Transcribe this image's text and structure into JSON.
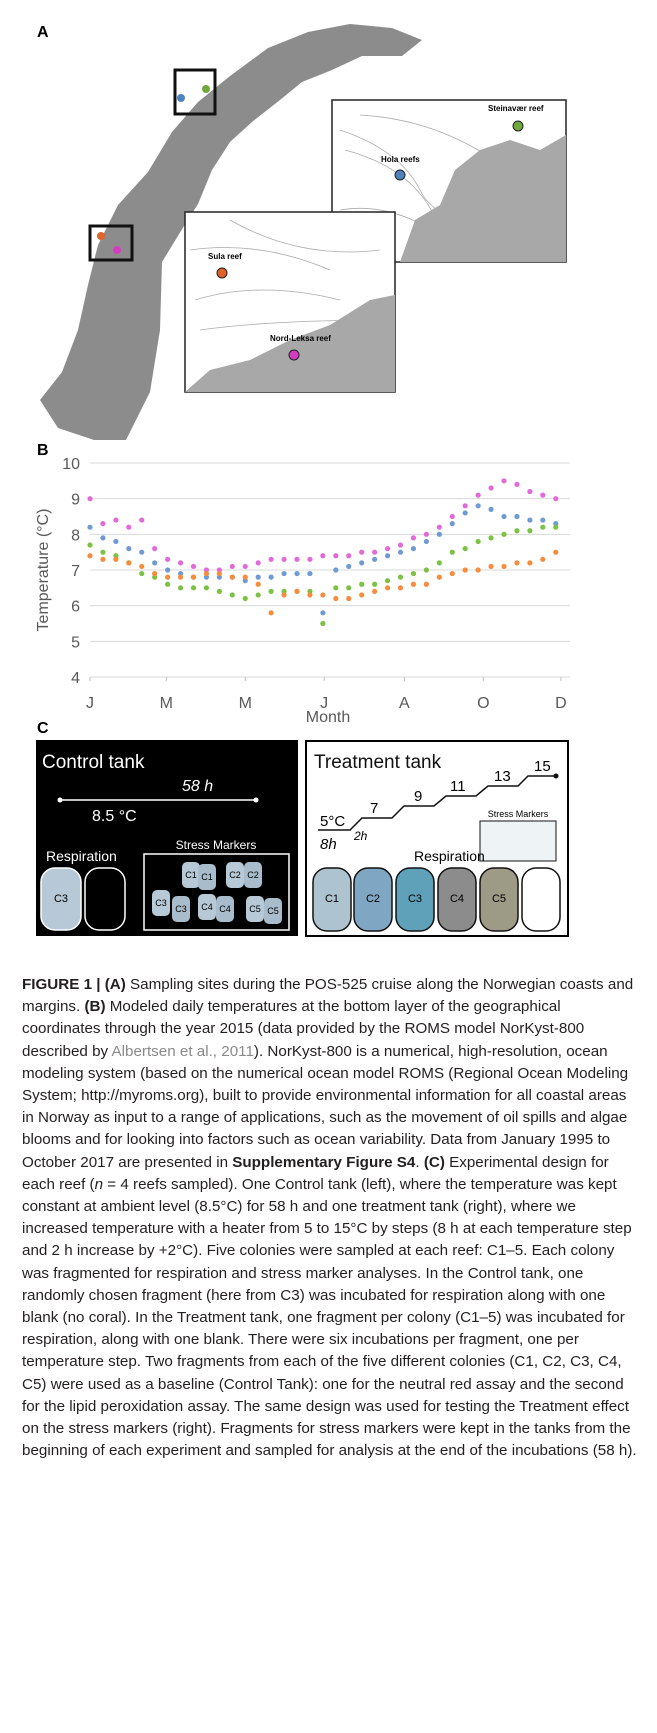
{
  "panel_a": {
    "label": "A",
    "sites": [
      "Steinavær reef",
      "Hola reefs",
      "Sula reef",
      "Nord-Leksa reef"
    ]
  },
  "chart_data": {
    "type": "scatter",
    "panel_label": "B",
    "x_label": "Month",
    "y_label": "Temperature (°C)",
    "x": [
      1,
      11,
      21,
      31,
      41,
      51,
      61,
      71,
      81,
      91,
      101,
      111,
      121,
      131,
      141,
      151,
      161,
      171,
      181,
      191,
      201,
      211,
      221,
      231,
      241,
      251,
      261,
      271,
      281,
      291,
      301,
      311,
      321,
      331,
      341,
      351,
      361
    ],
    "xlim": [
      1,
      372
    ],
    "xticks": [
      {
        "value": 1,
        "label": "J"
      },
      {
        "value": 60,
        "label": "M"
      },
      {
        "value": 121,
        "label": "M"
      },
      {
        "value": 182,
        "label": "J"
      },
      {
        "value": 244,
        "label": "A"
      },
      {
        "value": 305,
        "label": "O"
      },
      {
        "value": 365,
        "label": "D"
      }
    ],
    "ylim": [
      4,
      10
    ],
    "yticks": [
      4,
      5,
      6,
      7,
      8,
      9,
      10
    ],
    "grid": true,
    "series": [
      {
        "color": "#e26ad8",
        "values": [
          9.0,
          8.3,
          8.4,
          8.2,
          8.4,
          7.6,
          7.3,
          7.2,
          7.1,
          7.0,
          7.0,
          7.1,
          7.1,
          7.2,
          7.3,
          7.3,
          7.3,
          7.3,
          7.4,
          7.4,
          7.4,
          7.5,
          7.5,
          7.6,
          7.7,
          7.9,
          8.0,
          8.2,
          8.5,
          8.8,
          9.1,
          9.3,
          9.5,
          9.4,
          9.2,
          9.1,
          9.0
        ]
      },
      {
        "color": "#6f9bd2",
        "values": [
          8.2,
          7.9,
          7.8,
          7.6,
          7.5,
          7.2,
          7.0,
          6.9,
          6.8,
          6.8,
          6.8,
          6.8,
          6.7,
          6.8,
          6.8,
          6.9,
          6.9,
          6.9,
          5.8,
          7.0,
          7.1,
          7.2,
          7.3,
          7.4,
          7.5,
          7.6,
          7.8,
          8.0,
          8.3,
          8.6,
          8.8,
          8.7,
          8.5,
          8.5,
          8.4,
          8.4,
          8.3
        ]
      },
      {
        "color": "#7cc242",
        "values": [
          7.7,
          7.5,
          7.4,
          7.2,
          6.9,
          6.8,
          6.6,
          6.5,
          6.5,
          6.5,
          6.4,
          6.3,
          6.2,
          6.3,
          6.4,
          6.4,
          6.4,
          6.4,
          5.5,
          6.5,
          6.5,
          6.6,
          6.6,
          6.7,
          6.8,
          6.9,
          7.0,
          7.2,
          7.5,
          7.6,
          7.8,
          7.9,
          8.0,
          8.1,
          8.1,
          8.2,
          8.2
        ]
      },
      {
        "color": "#f68c3c",
        "values": [
          7.4,
          7.3,
          7.3,
          7.2,
          7.1,
          6.9,
          6.8,
          6.8,
          6.8,
          6.9,
          6.9,
          6.8,
          6.8,
          6.6,
          5.8,
          6.3,
          6.4,
          6.3,
          6.3,
          6.2,
          6.2,
          6.3,
          6.4,
          6.5,
          6.5,
          6.6,
          6.6,
          6.8,
          6.9,
          7.0,
          7.0,
          7.1,
          7.1,
          7.2,
          7.2,
          7.3,
          7.5
        ]
      }
    ]
  },
  "panel_c": {
    "label": "C",
    "control": {
      "title": "Control tank",
      "duration": "58 h",
      "temperature": "8.5 °C",
      "respiration": "Respiration",
      "stress_markers": "Stress Markers",
      "respiration_colonies": [
        "C3"
      ],
      "stress_colonies": [
        "C1",
        "C1",
        "C2",
        "C2",
        "C3",
        "C3",
        "C4",
        "C4",
        "C5",
        "C5"
      ]
    },
    "treatment": {
      "title": "Treatment tank",
      "steps": [
        "5°C",
        "7",
        "9",
        "11",
        "13",
        "15"
      ],
      "ramp": "2h",
      "hold": "8h",
      "stress_markers": "Stress Markers",
      "respiration": "Respiration",
      "respiration_colonies": [
        "C1",
        "C2",
        "C3",
        "C4",
        "C5"
      ]
    }
  },
  "caption": {
    "segments": [
      "FIGURE 1 | ",
      "(A)",
      " Sampling sites during the POS-525 cruise along the Norwegian coasts and margins. ",
      "(B)",
      " Modeled daily temperatures at the bottom layer of the geographical coordinates through the year 2015 (data provided by the ROMS model NorKyst-800 described by ",
      "Albertsen et al., 2011",
      "). NorKyst-800 is a numerical, high-resolution, ocean modeling system (based on the numerical ocean model ROMS (Regional Ocean Modeling System; http://myroms.org), built to provide environmental information for all coastal areas in Norway as input to a range of applications, such as the movement of oil spills and algae blooms and for looking into factors such as ocean variability. Data from January 1995 to October 2017 are presented in ",
      "Supplementary Figure S4",
      ". ",
      "(C)",
      " Experimental design for each reef (",
      "n",
      " = 4 reefs sampled). One Control tank (left), where the temperature was kept constant at ambient level (8.5°C) for 58 h and one treatment tank (right), where we increased temperature with a heater from 5 to 15°C by steps (8 h at each temperature step and 2 h increase by +2°C). Five colonies were sampled at each reef: C1–5. Each colony was fragmented for respiration and stress marker analyses. In the Control tank, one randomly chosen fragment (here from C3) was incubated for respiration along with one blank (no coral). In the Treatment tank, one fragment per colony (C1–5) was incubated for respiration, along with one blank. There were six incubations per fragment, one per temperature step. Two fragments from each of the five different colonies (C1, C2, C3, C4, C5) were used as a baseline (Control Tank): one for the neutral red assay and the second for the lipid peroxidation assay. The same design was used for testing the Treatment effect on the stress markers (right). Fragments for stress markers were kept in the tanks from the beginning of each experiment and sampled for analysis at the end of the incubations (58 h)."
    ]
  }
}
